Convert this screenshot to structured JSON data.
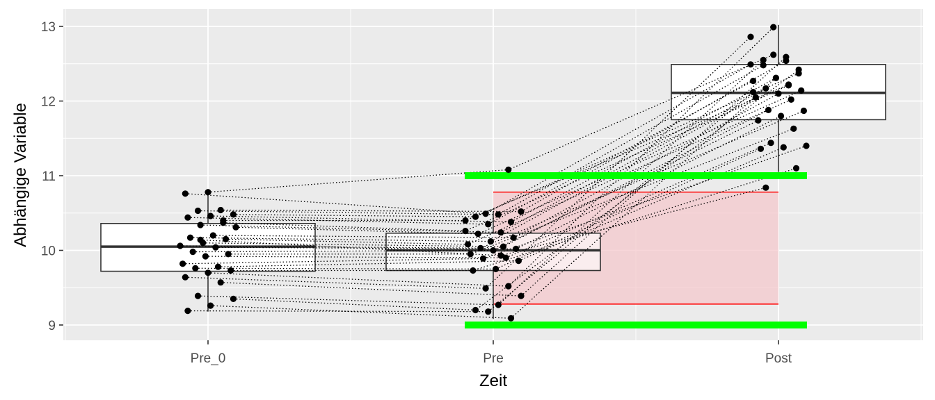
{
  "chart_data": {
    "type": "box",
    "xlabel": "Zeit",
    "ylabel": "Abhängige Variable",
    "categories": [
      "Pre_0",
      "Pre",
      "Post"
    ],
    "ylim": [
      8.8,
      13.25
    ],
    "yticks": [
      9,
      10,
      11,
      12,
      13
    ],
    "grid": true,
    "background": "#EBEBEB",
    "boxes": [
      {
        "category": "Pre_0",
        "min": 9.18,
        "q1": 9.72,
        "median": 10.05,
        "q3": 10.36,
        "max": 10.78
      },
      {
        "category": "Pre",
        "min": 9.08,
        "q1": 9.73,
        "median": 10.0,
        "q3": 10.23,
        "max": 10.52
      },
      {
        "category": "Post",
        "min": 11.05,
        "q1": 11.75,
        "median": 12.11,
        "q3": 12.49,
        "max": 13.02
      }
    ],
    "green_lines": {
      "values": [
        11.0,
        9.0
      ],
      "color": "#00FF00"
    },
    "red_band": {
      "low": 9.28,
      "high": 10.78,
      "line_color": "#FF0000",
      "fill_color": "#F4C8CC"
    },
    "subjects": [
      {
        "pre_0": 10.78,
        "pre": 11.08,
        "post": 12.62
      },
      {
        "pre_0": 10.76,
        "pre": 10.49,
        "post": 12.49
      },
      {
        "pre_0": 10.54,
        "pre": 10.52,
        "post": 12.54
      },
      {
        "pre_0": 10.53,
        "pre": 10.48,
        "post": 12.48
      },
      {
        "pre_0": 10.48,
        "pre": 10.45,
        "post": 12.37
      },
      {
        "pre_0": 10.46,
        "pre": 10.38,
        "post": 12.31
      },
      {
        "pre_0": 10.44,
        "pre": 10.35,
        "post": 12.27
      },
      {
        "pre_0": 10.37,
        "pre": 10.26,
        "post": 12.21
      },
      {
        "pre_0": 10.34,
        "pre": 10.24,
        "post": 12.17
      },
      {
        "pre_0": 10.31,
        "pre": 10.22,
        "post": 12.14
      },
      {
        "pre_0": 10.2,
        "pre": 10.17,
        "post": 12.1
      },
      {
        "pre_0": 10.17,
        "pre": 10.12,
        "post": 12.05
      },
      {
        "pre_0": 10.15,
        "pre": 10.08,
        "post": 12.02
      },
      {
        "pre_0": 10.1,
        "pre": 10.05,
        "post": 11.88
      },
      {
        "pre_0": 10.06,
        "pre": 10.03,
        "post": 11.87
      },
      {
        "pre_0": 10.04,
        "pre": 10.02,
        "post": 11.8
      },
      {
        "pre_0": 9.98,
        "pre": 10.0,
        "post": 11.74
      },
      {
        "pre_0": 9.95,
        "pre": 9.95,
        "post": 11.63
      },
      {
        "pre_0": 9.92,
        "pre": 9.9,
        "post": 11.44
      },
      {
        "pre_0": 9.82,
        "pre": 9.89,
        "post": 11.4
      },
      {
        "pre_0": 9.78,
        "pre": 9.86,
        "post": 11.38
      },
      {
        "pre_0": 9.76,
        "pre": 9.75,
        "post": 11.36
      },
      {
        "pre_0": 9.73,
        "pre": 9.73,
        "post": 11.1
      },
      {
        "pre_0": 9.7,
        "pre": 9.52,
        "post": 12.99
      },
      {
        "pre_0": 9.64,
        "pre": 9.49,
        "post": 12.86
      },
      {
        "pre_0": 9.57,
        "pre": 9.39,
        "post": 12.59
      },
      {
        "pre_0": 9.39,
        "pre": 9.27,
        "post": 12.55
      },
      {
        "pre_0": 9.35,
        "pre": 9.2,
        "post": 12.42
      },
      {
        "pre_0": 9.26,
        "pre": 9.09,
        "post": 12.31
      },
      {
        "pre_0": 9.19,
        "pre": 9.18,
        "post": 12.12
      },
      {
        "pre_0": 10.4,
        "pre": 10.4,
        "post": 12.22
      },
      {
        "pre_0": 10.14,
        "pre": 9.93,
        "post": 10.84
      }
    ]
  }
}
